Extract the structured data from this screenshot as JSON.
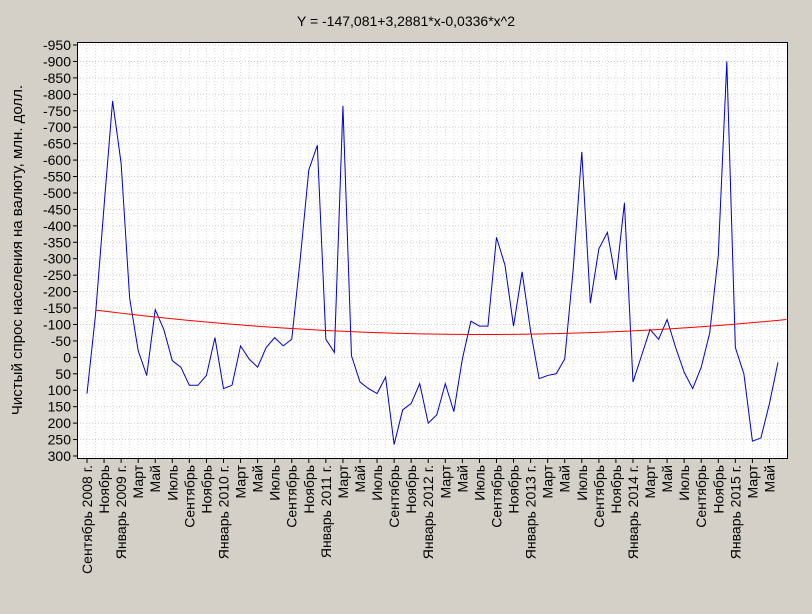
{
  "chart_data": {
    "type": "line",
    "title": "Y = -147,081+3,2881*x-0,0336*x^2",
    "ylabel": "Чистый спрос населения на валюту, млн. долл.",
    "xlabel": "",
    "ylim": [
      -950,
      300
    ],
    "y_ticks": [
      "-950",
      "-900",
      "-850",
      "-800",
      "-750",
      "-700",
      "-650",
      "-600",
      "-550",
      "-500",
      "-450",
      "-400",
      "-350",
      "-300",
      "-250",
      "-200",
      "-150",
      "-100",
      "-50",
      "0",
      "50",
      "100",
      "150",
      "200",
      "250",
      "300"
    ],
    "y_tick_values": [
      -950,
      -900,
      -850,
      -800,
      -750,
      -700,
      -650,
      -600,
      -550,
      -500,
      -450,
      -400,
      -350,
      -300,
      -250,
      -200,
      -150,
      -100,
      -50,
      0,
      50,
      100,
      150,
      200,
      250,
      300
    ],
    "x_labels": [
      {
        "index": 0,
        "label": "Сентябрь 2008 г."
      },
      {
        "index": 2,
        "label": "Ноябрь"
      },
      {
        "index": 4,
        "label": "Январь 2009 г."
      },
      {
        "index": 6,
        "label": "Март"
      },
      {
        "index": 8,
        "label": "Май"
      },
      {
        "index": 10,
        "label": "Июль"
      },
      {
        "index": 12,
        "label": "Сентябрь"
      },
      {
        "index": 14,
        "label": "Ноябрь"
      },
      {
        "index": 16,
        "label": "Январь 2010 г."
      },
      {
        "index": 18,
        "label": "Март"
      },
      {
        "index": 20,
        "label": "Май"
      },
      {
        "index": 22,
        "label": "Июль"
      },
      {
        "index": 24,
        "label": "Сентябрь"
      },
      {
        "index": 26,
        "label": "Ноябрь"
      },
      {
        "index": 28,
        "label": "Январь 2011 г."
      },
      {
        "index": 30,
        "label": "Март"
      },
      {
        "index": 32,
        "label": "Май"
      },
      {
        "index": 34,
        "label": "Июль"
      },
      {
        "index": 36,
        "label": "Сентябрь"
      },
      {
        "index": 38,
        "label": "Ноябрь"
      },
      {
        "index": 40,
        "label": "Январь 2012 г."
      },
      {
        "index": 42,
        "label": "Март"
      },
      {
        "index": 44,
        "label": "Май"
      },
      {
        "index": 46,
        "label": "Июль"
      },
      {
        "index": 48,
        "label": "Сентябрь"
      },
      {
        "index": 50,
        "label": "Ноябрь"
      },
      {
        "index": 52,
        "label": "Январь 2013 г."
      },
      {
        "index": 54,
        "label": "Март"
      },
      {
        "index": 56,
        "label": "Май"
      },
      {
        "index": 58,
        "label": "Июль"
      },
      {
        "index": 60,
        "label": "Сентябрь"
      },
      {
        "index": 62,
        "label": "Ноябрь"
      },
      {
        "index": 64,
        "label": "Январь 2014 г."
      },
      {
        "index": 66,
        "label": "Март"
      },
      {
        "index": 68,
        "label": "Май"
      },
      {
        "index": 70,
        "label": "Июль"
      },
      {
        "index": 72,
        "label": "Сентябрь"
      },
      {
        "index": 74,
        "label": "Ноябрь"
      },
      {
        "index": 76,
        "label": "Январь 2015 г."
      },
      {
        "index": 78,
        "label": "Март"
      },
      {
        "index": 80,
        "label": "Май"
      }
    ],
    "series": [
      {
        "color": "#0000cc",
        "values": [
          110,
          -130,
          -460,
          -780,
          -590,
          -180,
          -20,
          55,
          -145,
          -85,
          10,
          30,
          85,
          85,
          55,
          -60,
          95,
          85,
          -35,
          5,
          30,
          -30,
          -60,
          -35,
          -55,
          -300,
          -570,
          -645,
          -55,
          -15,
          -765,
          -5,
          75,
          95,
          110,
          60,
          265,
          160,
          140,
          80,
          200,
          175,
          80,
          165,
          5,
          -110,
          -95,
          -95,
          -365,
          -280,
          -95,
          -260,
          -80,
          65,
          55,
          50,
          5,
          -270,
          -625,
          -165,
          -330,
          -380,
          -235,
          -470,
          75,
          -5,
          -85,
          -55,
          -115,
          -30,
          45,
          95,
          30,
          -75,
          -310,
          -900,
          -30,
          50,
          255,
          245,
          140,
          15
        ],
        "x_start": 0
      },
      {
        "color": "#ff0000",
        "values": [
          -143.79,
          -140.57,
          -137.41,
          -134.33,
          -131.32,
          -128.38,
          -125.52,
          -122.72,
          -119.99,
          -117.34,
          -114.76,
          -112.25,
          -109.81,
          -107.44,
          -105.14,
          -102.92,
          -100.77,
          -98.69,
          -96.68,
          -94.74,
          -92.87,
          -91.08,
          -89.36,
          -87.71,
          -86.13,
          -84.62,
          -83.19,
          -81.83,
          -80.54,
          -79.32,
          -78.17,
          -77.1,
          -76.09,
          -75.16,
          -74.3,
          -73.51,
          -72.8,
          -72.15,
          -71.58,
          -71.08,
          -70.65,
          -70.3,
          -70.01,
          -69.8,
          -69.66,
          -69.59,
          -69.59,
          -69.67,
          -69.82,
          -70.04,
          -70.33,
          -70.69,
          -71.13,
          -71.64,
          -72.22,
          -72.87,
          -73.59,
          -74.39,
          -75.26,
          -76.2,
          -77.21,
          -78.29,
          -79.45,
          -80.68,
          -81.98,
          -83.35,
          -84.8,
          -86.32,
          -87.91,
          -89.57,
          -91.3,
          -93.11,
          -94.99,
          -96.94,
          -98.96,
          -101.06,
          -103.23,
          -105.47,
          -107.78,
          -110.16,
          -112.62,
          -115.15
        ],
        "x_start": 1
      }
    ],
    "grid": true,
    "legend": "none"
  }
}
